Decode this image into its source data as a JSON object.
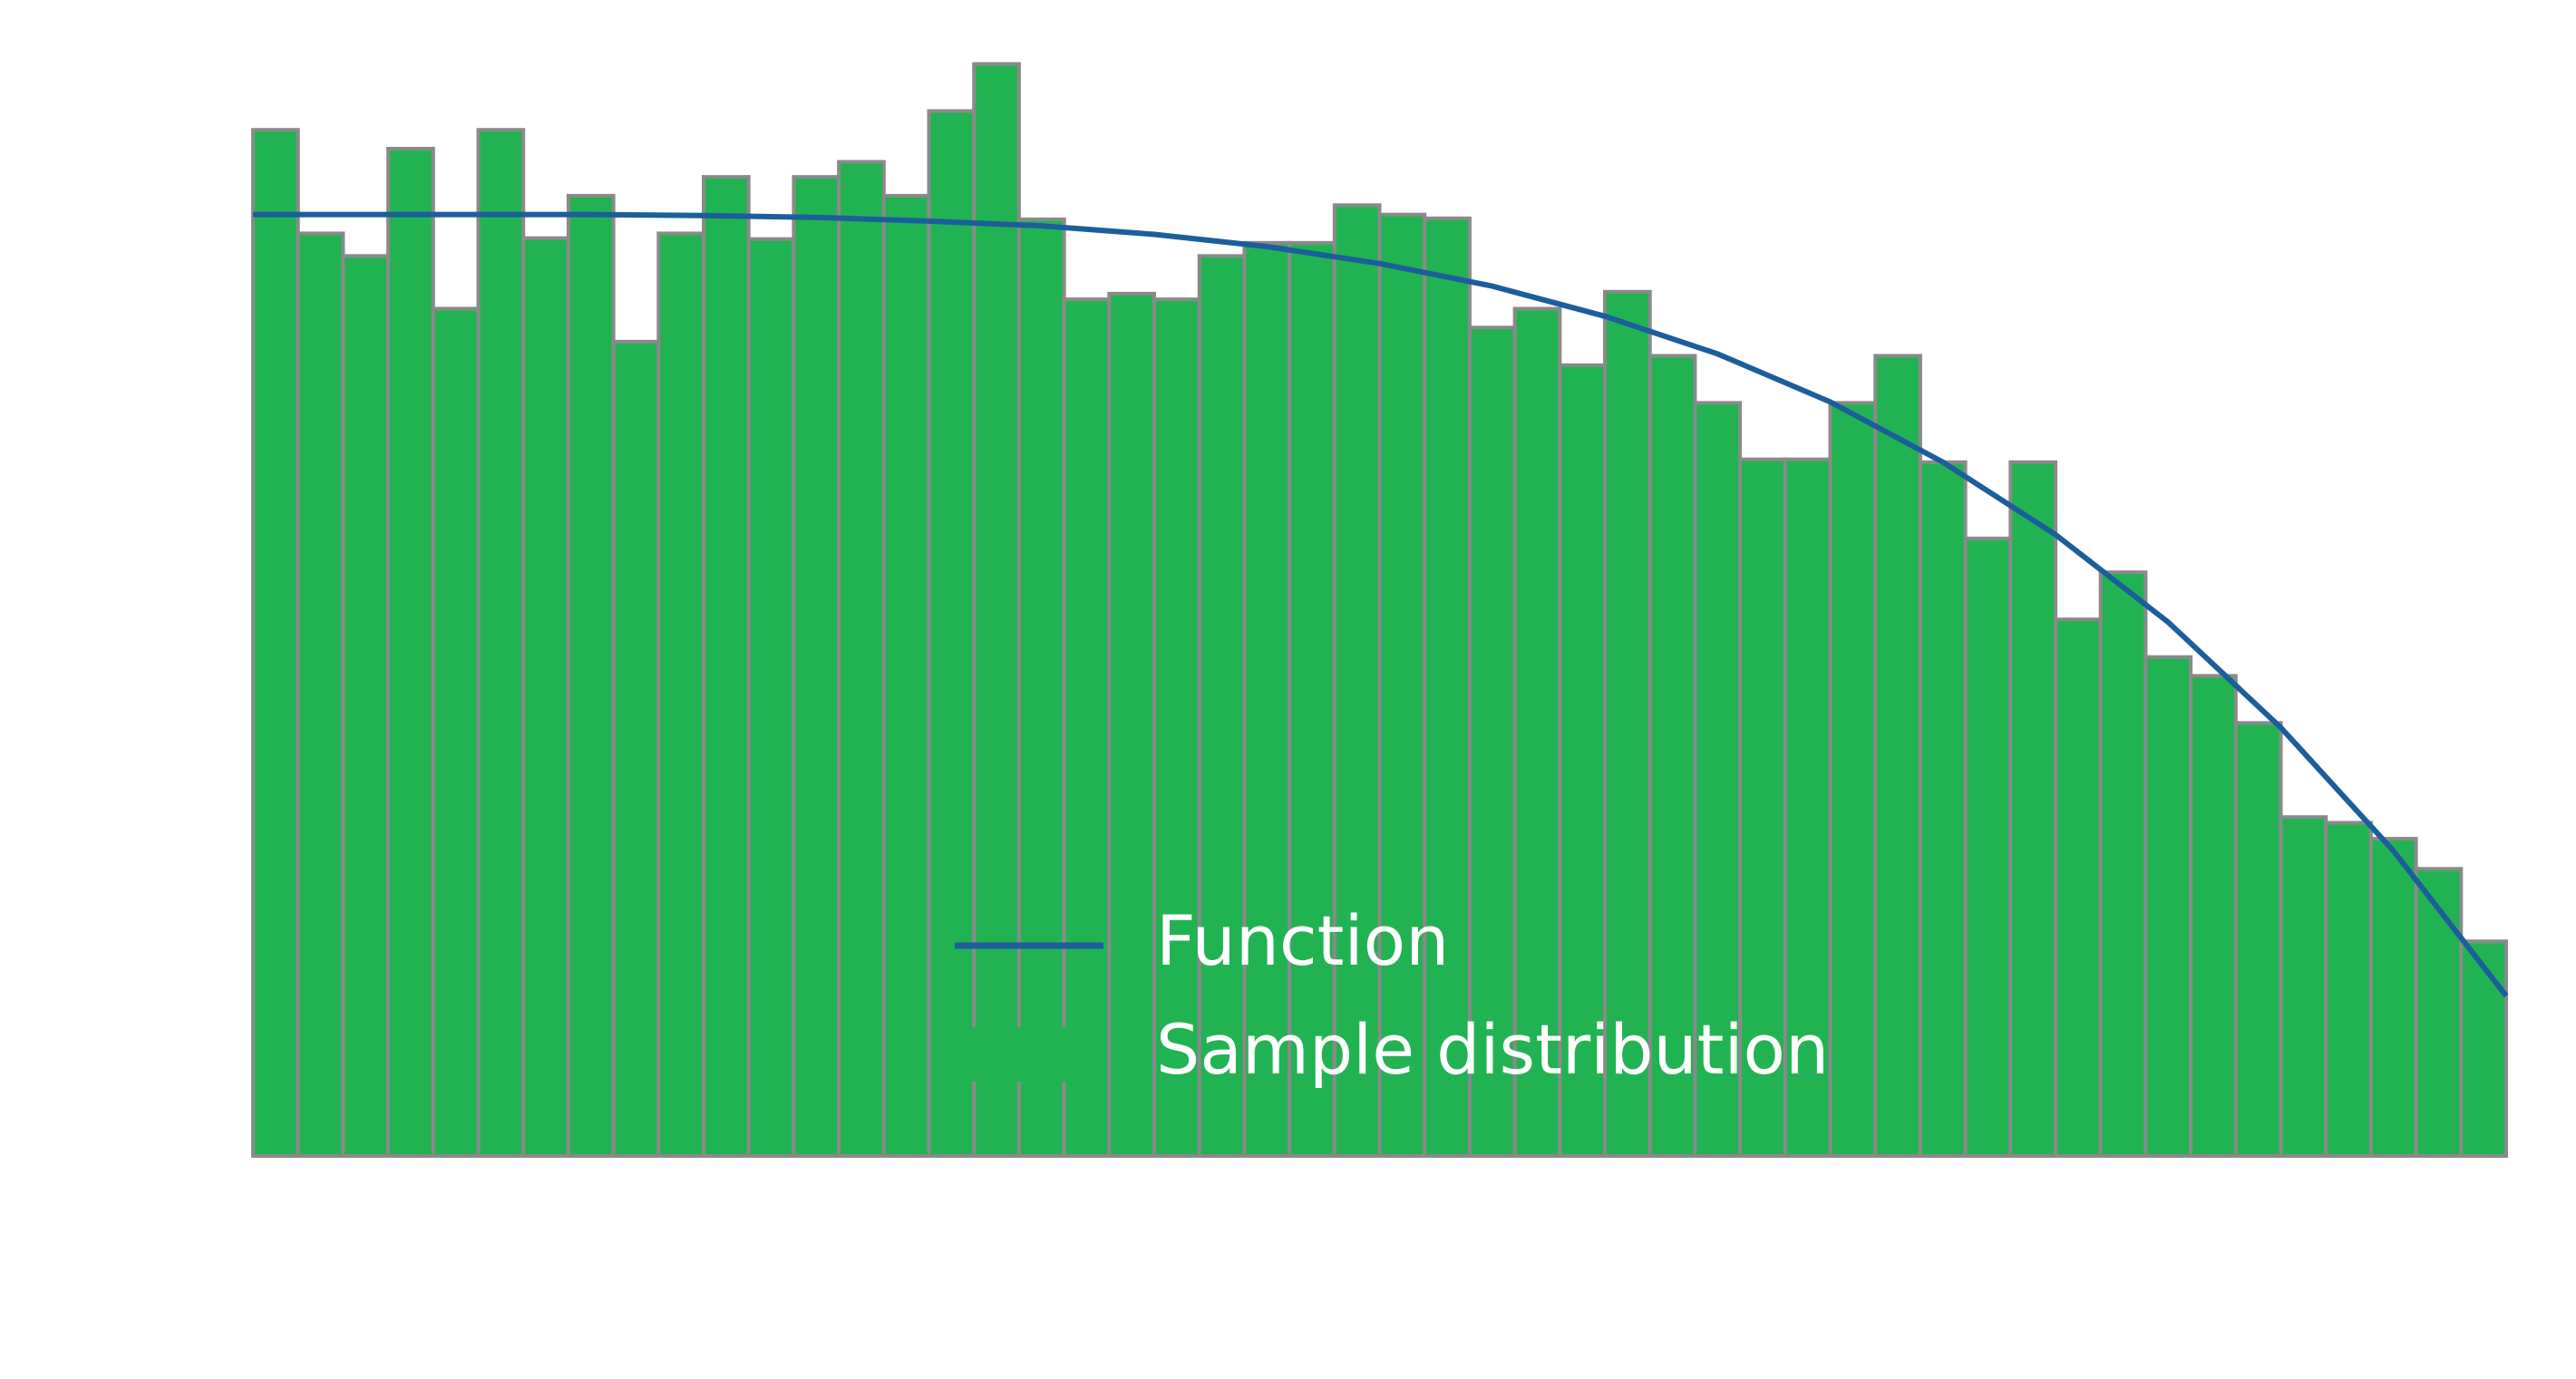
{
  "chart_data": {
    "type": "histogram",
    "xlim": [
      0,
      1
    ],
    "ylim": [
      0,
      1.2
    ],
    "legend": "lower center",
    "bins": [
      0,
      0.02,
      0.04,
      0.06,
      0.08,
      0.1,
      0.12,
      0.14,
      0.16,
      0.18,
      0.2,
      0.22,
      0.24,
      0.26,
      0.28,
      0.3,
      0.32,
      0.34,
      0.36,
      0.38,
      0.4,
      0.42,
      0.44,
      0.46,
      0.48,
      0.5,
      0.52,
      0.54,
      0.56,
      0.58,
      0.6,
      0.62,
      0.64,
      0.66,
      0.68,
      0.7,
      0.72,
      0.74,
      0.76,
      0.78,
      0.8,
      0.82,
      0.84,
      0.86,
      0.88,
      0.9,
      0.92,
      0.94,
      0.96,
      0.98,
      1
    ],
    "series": [
      {
        "name": "Function",
        "type": "line",
        "color": "#1c5e9c",
        "x": [
          0,
          0.05,
          0.1,
          0.15,
          0.2,
          0.25,
          0.3,
          0.35,
          0.4,
          0.45,
          0.5,
          0.55,
          0.6,
          0.65,
          0.7,
          0.75,
          0.8,
          0.85,
          0.9,
          0.95,
          1
        ],
        "values": [
          1,
          1,
          1,
          1,
          0.999,
          0.997,
          0.993,
          0.988,
          0.979,
          0.966,
          0.948,
          0.924,
          0.892,
          0.852,
          0.801,
          0.737,
          0.66,
          0.567,
          0.455,
          0.324,
          0.17
        ]
      },
      {
        "name": "Sample distribution",
        "type": "histogram",
        "color": "#21b352",
        "edgecolor": "#8a8a8a",
        "values": [
          1.09,
          0.98,
          0.956,
          1.07,
          0.9,
          1.09,
          0.975,
          1.02,
          0.865,
          0.98,
          1.04,
          0.974,
          1.04,
          1.056,
          1.02,
          1.11,
          1.16,
          0.995,
          0.91,
          0.916,
          0.91,
          0.956,
          0.97,
          0.97,
          1.01,
          1.0,
          0.996,
          0.88,
          0.9,
          0.84,
          0.918,
          0.85,
          0.8,
          0.74,
          0.74,
          0.8,
          0.85,
          0.737,
          0.656,
          0.737,
          0.57,
          0.62,
          0.53,
          0.51,
          0.46,
          0.36,
          0.354,
          0.337,
          0.305,
          0.228
        ]
      }
    ]
  }
}
